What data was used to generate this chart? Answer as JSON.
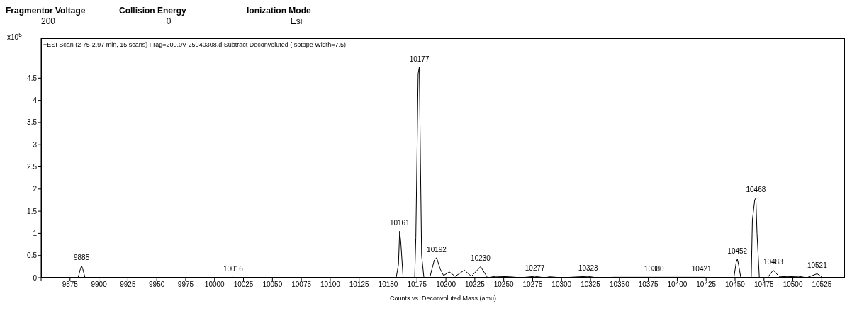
{
  "chart_data": {
    "type": "line",
    "subtitle": "+ESI Scan (2.75-2.97 min, 15 scans) Frag=200.0V 25040308.d  Subtract Deconvoluted (Isotope Width=7.5)",
    "xlabel": "Counts vs. Deconvoluted Mass (amu)",
    "ylabel": "x10$^{5}$",
    "x": [
      9850,
      9882,
      9884,
      9885,
      9886,
      9888,
      10014,
      10016,
      10018,
      10157,
      10159,
      10160,
      10161,
      10163,
      10173,
      10174,
      10176,
      10177,
      10178,
      10179,
      10181,
      10186,
      10190,
      10192,
      10195,
      10198,
      10203,
      10208,
      10216,
      10222,
      10230,
      10236,
      10243,
      10255,
      10265,
      10277,
      10285,
      10290,
      10300,
      10323,
      10330,
      10345,
      10360,
      10380,
      10421,
      10449,
      10451,
      10452,
      10453,
      10455,
      10464,
      10465,
      10467,
      10468,
      10469,
      10471,
      10478,
      10483,
      10488,
      10495,
      10505,
      10512,
      10521,
      10526,
      10545
    ],
    "series": [
      {
        "color": "#000000",
        "values": [
          0,
          0,
          0.2,
          0.27,
          0.2,
          0,
          0,
          0.01,
          0,
          0,
          0.3,
          1.05,
          0.8,
          0,
          0,
          0.9,
          4.6,
          4.75,
          2.6,
          0.5,
          0,
          0,
          0.4,
          0.45,
          0.2,
          0.05,
          0.13,
          0.03,
          0.17,
          0.03,
          0.25,
          0,
          0.03,
          0.02,
          0,
          0.03,
          0,
          0.02,
          0,
          0.03,
          0,
          0.01,
          0.01,
          0.01,
          0.01,
          0,
          0.35,
          0.42,
          0.3,
          0,
          0,
          1.3,
          1.75,
          1.8,
          1.0,
          0,
          0,
          0.17,
          0.03,
          0.02,
          0.03,
          0,
          0.09,
          0,
          0
        ]
      }
    ],
    "xlim": [
      9850,
      10545
    ],
    "xticks": [
      {
        "value": 9850,
        "label": null
      },
      9875,
      9900,
      9925,
      9950,
      9975,
      10000,
      10025,
      10050,
      10075,
      10100,
      10125,
      10150,
      10175,
      10200,
      10225,
      10250,
      10275,
      10300,
      10325,
      10350,
      10375,
      10400,
      10425,
      10450,
      10475,
      10500,
      10525
    ],
    "ylim": [
      0,
      5.4
    ],
    "yticks": [
      0,
      0.5,
      1,
      1.5,
      2,
      2.5,
      3,
      3.5,
      4,
      4.5
    ],
    "marker": "none",
    "line_style": "solid",
    "annotations": [
      "Fragmentor Voltage",
      "Collision Energy",
      "Ionization Mode",
      "200",
      "0",
      "Esi",
      {
        "text": "9885",
        "x": 9885,
        "y": 0.27
      },
      {
        "text": "10016",
        "x": 10016,
        "y": 0.01
      },
      {
        "text": "10161",
        "x": 10160,
        "y": 1.05
      },
      {
        "text": "10177",
        "x": 10177,
        "y": 4.75
      },
      {
        "text": "10192",
        "x": 10192,
        "y": 0.45
      },
      {
        "text": "10230",
        "x": 10230,
        "y": 0.25
      },
      {
        "text": "10277",
        "x": 10277,
        "y": 0.03
      },
      {
        "text": "10323",
        "x": 10323,
        "y": 0.03
      },
      {
        "text": "10380",
        "x": 10380,
        "y": 0.01
      },
      {
        "text": "10421",
        "x": 10421,
        "y": 0.01
      },
      {
        "text": "10452",
        "x": 10452,
        "y": 0.42
      },
      {
        "text": "10468",
        "x": 10468,
        "y": 1.8
      },
      {
        "text": "10483",
        "x": 10483,
        "y": 0.17
      },
      {
        "text": "10521",
        "x": 10521,
        "y": 0.09
      }
    ]
  }
}
